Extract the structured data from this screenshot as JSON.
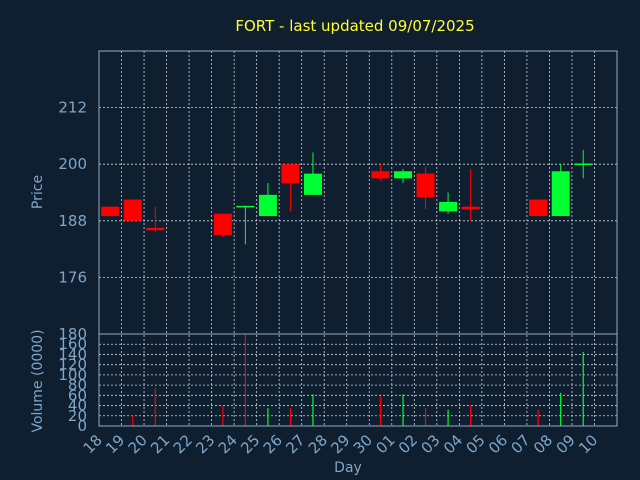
{
  "title": "FORT - last updated 09/07/2025",
  "colors": {
    "background": "#0f1f30",
    "title": "#ffff33",
    "axis_text": "#7ea6c8",
    "axis_line": "#93aec4",
    "grid": "#c8d2dc",
    "up": "#00ff33",
    "down": "#ff0000"
  },
  "chart_data": [
    {
      "type": "candlestick",
      "title": "FORT - last updated 09/07/2025",
      "ylabel": "Price",
      "ylim": [
        164,
        224
      ],
      "yticks": [
        176,
        188,
        200,
        212
      ],
      "grid": true,
      "categories": [
        "18",
        "19",
        "20",
        "21",
        "22",
        "23",
        "24",
        "25",
        "26",
        "27",
        "28",
        "29",
        "30",
        "01",
        "02",
        "03",
        "04",
        "05",
        "06",
        "07",
        "08",
        "09",
        "10"
      ],
      "candles": [
        {
          "day": "18",
          "open": 191,
          "high": 191,
          "low": 189,
          "close": 189
        },
        {
          "day": "19",
          "open": 192.5,
          "high": 192.5,
          "low": 188,
          "close": 188
        },
        {
          "day": "20",
          "open": 186.5,
          "high": 191,
          "low": 185.5,
          "close": 186
        },
        {
          "day": "23",
          "open": 189.5,
          "high": 189.5,
          "low": 184.5,
          "close": 185
        },
        {
          "day": "24",
          "open": 191,
          "high": 191,
          "low": 183,
          "close": 191
        },
        {
          "day": "25",
          "open": 189,
          "high": 196,
          "low": 189,
          "close": 193.5
        },
        {
          "day": "26",
          "open": 200,
          "high": 200,
          "low": 190,
          "close": 196
        },
        {
          "day": "27",
          "open": 193.5,
          "high": 202.5,
          "low": 193.5,
          "close": 198
        },
        {
          "day": "30",
          "open": 198.5,
          "high": 200,
          "low": 196.5,
          "close": 197
        },
        {
          "day": "01",
          "open": 197,
          "high": 199,
          "low": 196,
          "close": 198.5
        },
        {
          "day": "02",
          "open": 198,
          "high": 199.5,
          "low": 190.5,
          "close": 193
        },
        {
          "day": "03",
          "open": 190,
          "high": 194,
          "low": 189.5,
          "close": 192
        },
        {
          "day": "04",
          "open": 191,
          "high": 199,
          "low": 188,
          "close": 190.5
        },
        {
          "day": "07",
          "open": 192.5,
          "high": 192.5,
          "low": 189,
          "close": 189
        },
        {
          "day": "08",
          "open": 189,
          "high": 200,
          "low": 189,
          "close": 198.5
        },
        {
          "day": "09",
          "open": 200,
          "high": 203,
          "low": 197,
          "close": 200
        }
      ]
    },
    {
      "type": "bar",
      "xlabel": "Day",
      "ylabel": "Volume (0000)",
      "ylim": [
        0,
        180
      ],
      "yticks": [
        0,
        20,
        40,
        60,
        80,
        100,
        120,
        140,
        160,
        180
      ],
      "grid": true,
      "categories": [
        "18",
        "19",
        "20",
        "21",
        "22",
        "23",
        "24",
        "25",
        "26",
        "27",
        "28",
        "29",
        "30",
        "01",
        "02",
        "03",
        "04",
        "05",
        "06",
        "07",
        "08",
        "09",
        "10"
      ],
      "volumes": [
        {
          "day": "18",
          "value": 0,
          "dir": "down"
        },
        {
          "day": "19",
          "value": 22,
          "dir": "down"
        },
        {
          "day": "20",
          "value": 75,
          "dir": "down"
        },
        {
          "day": "23",
          "value": 40,
          "dir": "down"
        },
        {
          "day": "24",
          "value": 178,
          "dir": "down"
        },
        {
          "day": "25",
          "value": 35,
          "dir": "up"
        },
        {
          "day": "26",
          "value": 35,
          "dir": "down"
        },
        {
          "day": "27",
          "value": 62,
          "dir": "up"
        },
        {
          "day": "30",
          "value": 58,
          "dir": "down"
        },
        {
          "day": "01",
          "value": 62,
          "dir": "up"
        },
        {
          "day": "02",
          "value": 35,
          "dir": "down"
        },
        {
          "day": "03",
          "value": 32,
          "dir": "up"
        },
        {
          "day": "04",
          "value": 40,
          "dir": "down"
        },
        {
          "day": "07",
          "value": 32,
          "dir": "down"
        },
        {
          "day": "08",
          "value": 65,
          "dir": "up"
        },
        {
          "day": "09",
          "value": 145,
          "dir": "up"
        }
      ]
    }
  ]
}
